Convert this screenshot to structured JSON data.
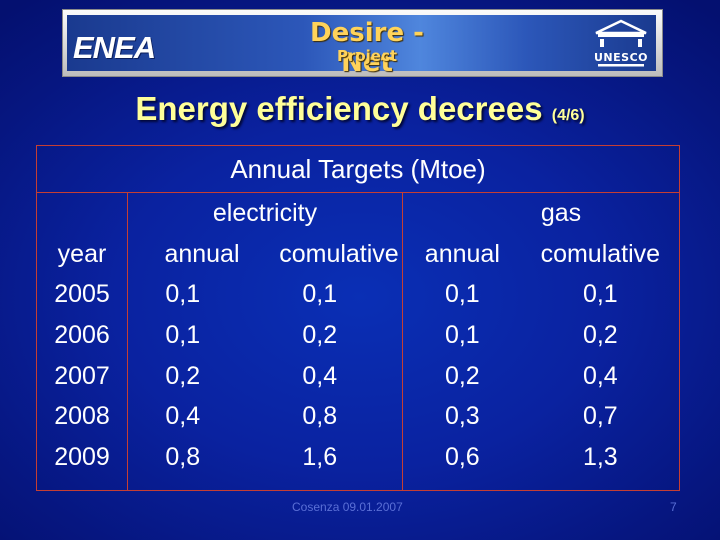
{
  "banner": {
    "logo_left": "ENEA",
    "project_title": "Desire - Net",
    "project_sub": "Project",
    "logo_right": "UNESCO"
  },
  "title": {
    "main": "Energy efficiency decrees",
    "sub": "(4/6)"
  },
  "table": {
    "caption": "Annual Targets (Mtoe)",
    "year_header": "year",
    "groups": [
      {
        "name": "electricity",
        "columns": [
          "annual",
          "comulative"
        ]
      },
      {
        "name": "gas",
        "columns": [
          "annual",
          "comulative"
        ]
      }
    ],
    "years": [
      "2005",
      "2006",
      "2007",
      "2008",
      "2009"
    ],
    "electricity_annual": [
      "0,1",
      "0,1",
      "0,2",
      "0,4",
      "0,8"
    ],
    "electricity_cumulative": [
      "0,1",
      "0,2",
      "0,4",
      "0,8",
      "1,6"
    ],
    "gas_annual": [
      "0,1",
      "0,1",
      "0,2",
      "0,3",
      "0,6"
    ],
    "gas_cumulative": [
      "0,1",
      "0,2",
      "0,4",
      "0,7",
      "1,3"
    ]
  },
  "footer": {
    "date": "Cosenza 09.01.2007",
    "page": "7"
  }
}
